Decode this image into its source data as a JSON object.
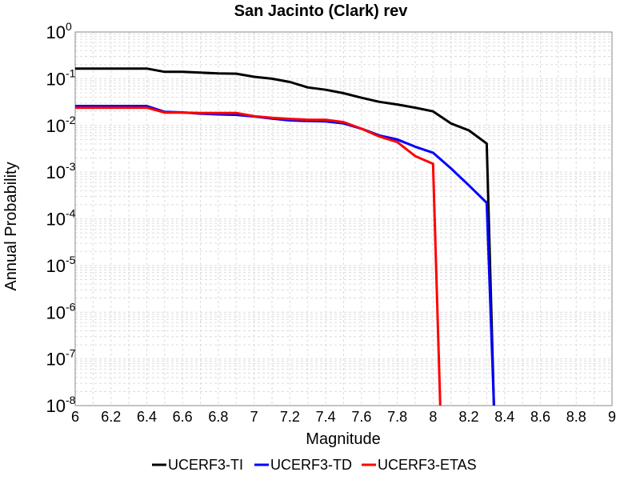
{
  "chart_data": {
    "type": "line",
    "title": "San Jacinto (Clark) rev",
    "xlabel": "Magnitude",
    "ylabel": "Annual Probability",
    "xlim": [
      6,
      9
    ],
    "ylim": [
      1e-08,
      1
    ],
    "y_scale": "log",
    "grid": true,
    "legend_position": "bottom",
    "x_ticks": [
      "6",
      "6.2",
      "6.4",
      "6.6",
      "6.8",
      "7",
      "7.2",
      "7.4",
      "7.6",
      "7.8",
      "8",
      "8.2",
      "8.4",
      "8.6",
      "8.8",
      "9"
    ],
    "y_ticks": [
      {
        "base": "10",
        "exp": "0"
      },
      {
        "base": "10",
        "exp": "-1"
      },
      {
        "base": "10",
        "exp": "-2"
      },
      {
        "base": "10",
        "exp": "-3"
      },
      {
        "base": "10",
        "exp": "-4"
      },
      {
        "base": "10",
        "exp": "-5"
      },
      {
        "base": "10",
        "exp": "-6"
      },
      {
        "base": "10",
        "exp": "-7"
      },
      {
        "base": "10",
        "exp": "-8"
      }
    ],
    "series": [
      {
        "name": "UCERF3-TI",
        "color": "#000000",
        "x": [
          6.0,
          6.1,
          6.2,
          6.3,
          6.4,
          6.5,
          6.6,
          6.7,
          6.8,
          6.9,
          7.0,
          7.1,
          7.2,
          7.3,
          7.4,
          7.5,
          7.6,
          7.7,
          7.8,
          7.9,
          8.0,
          8.1,
          8.2,
          8.3,
          8.34
        ],
        "y": [
          0.165,
          0.165,
          0.165,
          0.165,
          0.165,
          0.14,
          0.14,
          0.135,
          0.13,
          0.128,
          0.11,
          0.1,
          0.085,
          0.065,
          0.058,
          0.049,
          0.039,
          0.032,
          0.028,
          0.024,
          0.02,
          0.011,
          0.0078,
          0.0041,
          1e-08
        ]
      },
      {
        "name": "UCERF3-TD",
        "color": "#0000ff",
        "x": [
          6.0,
          6.1,
          6.2,
          6.3,
          6.4,
          6.5,
          6.6,
          6.7,
          6.8,
          6.9,
          7.0,
          7.1,
          7.2,
          7.3,
          7.4,
          7.5,
          7.6,
          7.7,
          7.8,
          7.9,
          8.0,
          8.1,
          8.2,
          8.3,
          8.34
        ],
        "y": [
          0.026,
          0.026,
          0.026,
          0.026,
          0.026,
          0.0195,
          0.019,
          0.0178,
          0.0172,
          0.0168,
          0.0155,
          0.014,
          0.0128,
          0.0124,
          0.0122,
          0.011,
          0.0085,
          0.0061,
          0.005,
          0.0035,
          0.0026,
          0.0012,
          0.00052,
          0.00022,
          1e-08
        ]
      },
      {
        "name": "UCERF3-ETAS",
        "color": "#ff0000",
        "x": [
          6.0,
          6.1,
          6.2,
          6.3,
          6.4,
          6.5,
          6.6,
          6.7,
          6.8,
          6.9,
          7.0,
          7.1,
          7.2,
          7.3,
          7.4,
          7.5,
          7.6,
          7.7,
          7.8,
          7.9,
          8.0,
          8.04
        ],
        "y": [
          0.024,
          0.024,
          0.024,
          0.024,
          0.024,
          0.0188,
          0.0188,
          0.0185,
          0.0185,
          0.0185,
          0.0158,
          0.0145,
          0.0138,
          0.0132,
          0.0132,
          0.0118,
          0.0085,
          0.0058,
          0.0044,
          0.0022,
          0.0015,
          1e-08
        ]
      }
    ]
  }
}
